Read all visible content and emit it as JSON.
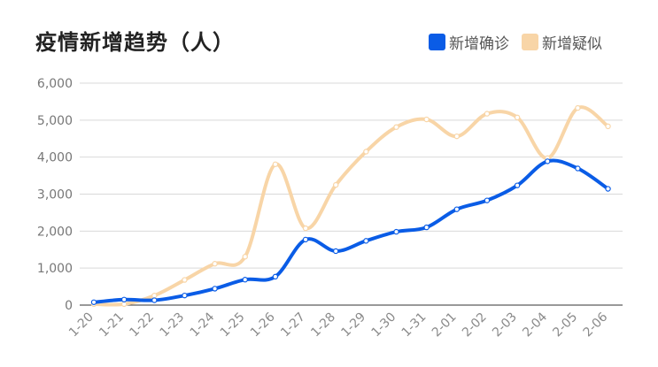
{
  "chart_data": {
    "type": "line",
    "title": "疫情新增趋势（人）",
    "xlabel": "",
    "ylabel": "",
    "categories": [
      "1-20",
      "1-21",
      "1-22",
      "1-23",
      "1-24",
      "1-25",
      "1-26",
      "1-27",
      "1-28",
      "1-29",
      "1-30",
      "1-31",
      "2-01",
      "2-02",
      "2-03",
      "2-04",
      "2-05",
      "2-06"
    ],
    "ylim": [
      0,
      6000
    ],
    "yticks": [
      "0",
      "1,000",
      "2,000",
      "3,000",
      "4,000",
      "5,000",
      "6,000"
    ],
    "ytick_values": [
      0,
      1000,
      2000,
      3000,
      4000,
      5000,
      6000
    ],
    "grid": true,
    "smooth": true,
    "legend_position": "top-right",
    "series": [
      {
        "name": "新增确诊",
        "color": "#0a5ce6",
        "values": [
          77,
          149,
          131,
          259,
          444,
          688,
          769,
          1771,
          1459,
          1737,
          1982,
          2102,
          2590,
          2829,
          3235,
          3887,
          3694,
          3143
        ]
      },
      {
        "name": "新增疑似",
        "color": "#f8d5a7",
        "values": [
          27,
          26,
          257,
          680,
          1118,
          1309,
          3806,
          2077,
          3248,
          4148,
          4812,
          5019,
          4562,
          5173,
          5072,
          3971,
          5328,
          4833
        ]
      }
    ]
  }
}
